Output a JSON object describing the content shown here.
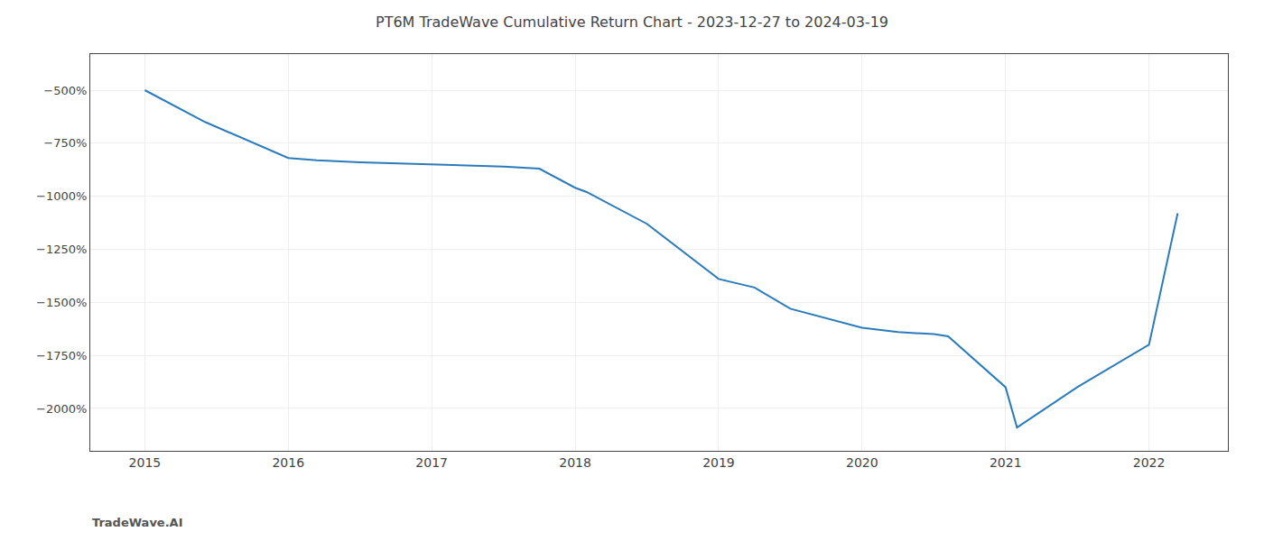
{
  "chart_data": {
    "type": "line",
    "title": "PT6M TradeWave Cumulative Return Chart - 2023-12-27 to 2024-03-19",
    "annotations": [
      "TradeWave.AI"
    ],
    "x": [
      2015.0,
      2015.42,
      2016.0,
      2016.2,
      2016.5,
      2017.0,
      2017.5,
      2017.75,
      2018.0,
      2018.08,
      2018.5,
      2019.0,
      2019.25,
      2019.5,
      2020.0,
      2020.25,
      2020.5,
      2020.6,
      2021.0,
      2021.08,
      2021.5,
      2022.0,
      2022.2
    ],
    "values": [
      -500,
      -650,
      -820,
      -830,
      -840,
      -850,
      -860,
      -870,
      -960,
      -980,
      -1130,
      -1390,
      -1430,
      -1530,
      -1620,
      -1640,
      -1650,
      -1660,
      -1900,
      -2090,
      -1900,
      -1700,
      -1080
    ],
    "color": "#2b7bba",
    "xlim": [
      2014.62,
      2022.55
    ],
    "ylim": [
      -2200,
      -330
    ],
    "xticks": [
      2015,
      2016,
      2017,
      2018,
      2019,
      2020,
      2021,
      2022
    ],
    "yticks": [
      {
        "value": -500,
        "label": "−500%"
      },
      {
        "value": -750,
        "label": "−750%"
      },
      {
        "value": -1000,
        "label": "−1000%"
      },
      {
        "value": -1250,
        "label": "−1250%"
      },
      {
        "value": -1500,
        "label": "−1500%"
      },
      {
        "value": -1750,
        "label": "−1750%"
      },
      {
        "value": -2000,
        "label": "−2000%"
      }
    ],
    "grid": true
  }
}
